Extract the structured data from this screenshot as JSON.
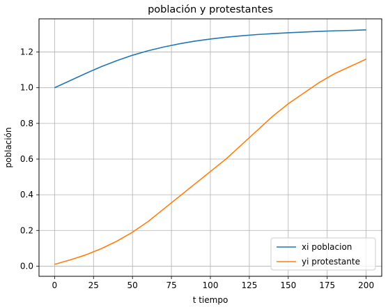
{
  "chart_data": {
    "type": "line",
    "title": "población y protestantes",
    "xlabel": "t tiempo",
    "ylabel": "población",
    "xlim": [
      -10,
      210
    ],
    "ylim": [
      -0.057,
      1.386
    ],
    "xticks": [
      0,
      25,
      50,
      75,
      100,
      125,
      150,
      175,
      200
    ],
    "xtick_labels": [
      "0",
      "25",
      "50",
      "75",
      "100",
      "125",
      "150",
      "175",
      "200"
    ],
    "yticks": [
      0.0,
      0.2,
      0.4,
      0.6,
      0.8,
      1.0,
      1.2
    ],
    "ytick_labels": [
      "0.0",
      "0.2",
      "0.4",
      "0.6",
      "0.8",
      "1.0",
      "1.2"
    ],
    "grid": true,
    "legend_position": "lower right",
    "series": [
      {
        "name": "xi poblacion",
        "color": "#1f77b4",
        "x": [
          0,
          10,
          20,
          30,
          40,
          50,
          60,
          70,
          80,
          90,
          100,
          110,
          120,
          130,
          140,
          150,
          160,
          170,
          180,
          190,
          200
        ],
        "values": [
          1.0,
          1.04,
          1.08,
          1.118,
          1.152,
          1.182,
          1.207,
          1.228,
          1.246,
          1.261,
          1.273,
          1.283,
          1.291,
          1.298,
          1.303,
          1.308,
          1.312,
          1.316,
          1.319,
          1.321,
          1.324
        ]
      },
      {
        "name": "yi protestante",
        "color": "#ff7f0e",
        "x": [
          0,
          10,
          20,
          30,
          40,
          50,
          60,
          70,
          80,
          90,
          100,
          110,
          120,
          130,
          140,
          150,
          160,
          170,
          180,
          190,
          200
        ],
        "values": [
          0.01,
          0.035,
          0.063,
          0.098,
          0.14,
          0.19,
          0.25,
          0.32,
          0.39,
          0.46,
          0.53,
          0.6,
          0.68,
          0.76,
          0.84,
          0.91,
          0.97,
          1.03,
          1.08,
          1.12,
          1.16
        ]
      }
    ]
  }
}
